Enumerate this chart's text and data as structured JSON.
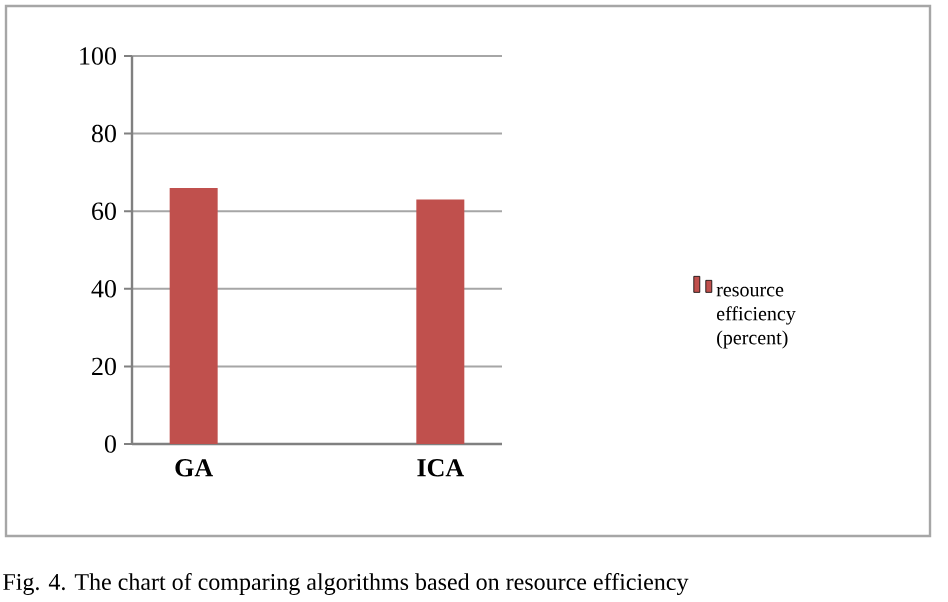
{
  "chart_data": {
    "type": "bar",
    "categories": [
      "GA",
      null,
      "ICA"
    ],
    "series": [
      {
        "name": "resource efficiency (percent)",
        "color": "#c0504d",
        "values": [
          66,
          null,
          63
        ]
      }
    ],
    "ylim": [
      0,
      100
    ],
    "yticks": [
      0,
      20,
      40,
      60,
      80,
      100
    ],
    "grid": "y",
    "legend": "right",
    "annotations": [
      "Fig. 4.    The chart of comparing algorithms based on resource efficiency"
    ]
  }
}
